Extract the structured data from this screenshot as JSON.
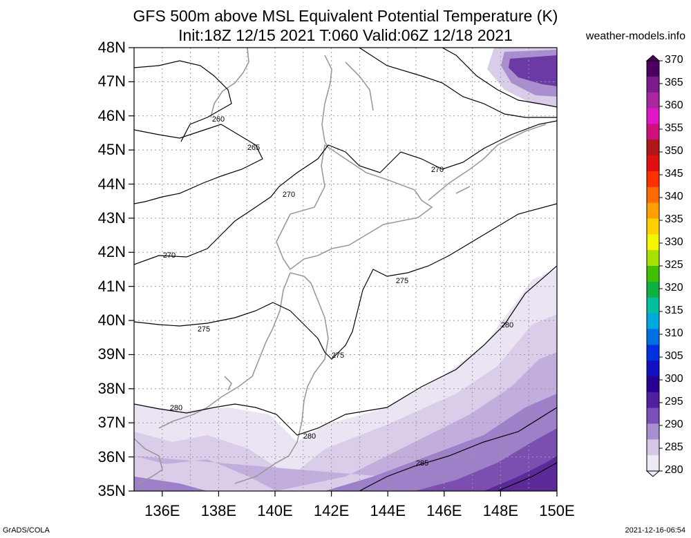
{
  "title_line1": "GFS 500m above MSL Equivalent Potential Temperature (K)",
  "title_line2": "Init:18Z 12/15 2021 T:060 Valid:06Z 12/18 2021",
  "credit": "weather-models.info",
  "footer_left": "GrADS/COLA",
  "footer_right": "2021-12-16-06:54",
  "lat_labels": [
    "48N",
    "47N",
    "46N",
    "45N",
    "44N",
    "43N",
    "42N",
    "41N",
    "40N",
    "39N",
    "38N",
    "37N",
    "36N",
    "35N"
  ],
  "lon_labels": [
    "136E",
    "138E",
    "140E",
    "142E",
    "144E",
    "146E",
    "148E",
    "150E"
  ],
  "colorbar": {
    "labels": [
      "370",
      "365",
      "360",
      "355",
      "350",
      "345",
      "340",
      "335",
      "330",
      "325",
      "320",
      "315",
      "310",
      "305",
      "300",
      "295",
      "290",
      "285",
      "280"
    ],
    "colors": [
      "#4b0060",
      "#7a1a8c",
      "#a8279e",
      "#e016c8",
      "#d0107a",
      "#b01818",
      "#e01010",
      "#ff3000",
      "#ff6a00",
      "#ffa000",
      "#ffd000",
      "#f5f500",
      "#a8e000",
      "#40c000",
      "#10b040",
      "#00c0a0",
      "#00a8e0",
      "#0070e0",
      "#0030e0",
      "#1010c0",
      "#2a0090",
      "#5020a0",
      "#7a50b8",
      "#a890d0",
      "#d4c8e6",
      "#efeaf5"
    ]
  },
  "contour_labels": [
    "260",
    "265",
    "270",
    "270",
    "270",
    "275",
    "275",
    "275",
    "280",
    "280",
    "280",
    "285"
  ],
  "chart_data": {
    "type": "heatmap",
    "title": "GFS 500m above MSL Equivalent Potential Temperature (K)",
    "subtitle": "Init:18Z 12/15 2021 T:060 Valid:06Z 12/18 2021",
    "units": "K",
    "lon_range": [
      135,
      150
    ],
    "lat_range": [
      35,
      48
    ],
    "color_scale_range": [
      280,
      370
    ],
    "color_scale_step": 5,
    "contours": [
      {
        "value": 260,
        "label_lon": 138.3,
        "label_lat": 45.9
      },
      {
        "value": 265,
        "label_lon": 139.7,
        "label_lat": 45.1
      },
      {
        "value": 270,
        "label_lon": 137.3,
        "label_lat": 41.9
      },
      {
        "value": 270,
        "label_lon": 140.5,
        "label_lat": 43.7
      },
      {
        "value": 270,
        "label_lon": 145.9,
        "label_lat": 44.4
      },
      {
        "value": 275,
        "label_lon": 137.8,
        "label_lat": 39.8
      },
      {
        "value": 275,
        "label_lon": 142.2,
        "label_lat": 38.9
      },
      {
        "value": 275,
        "label_lon": 145.4,
        "label_lat": 41.1
      },
      {
        "value": 280,
        "label_lon": 136.5,
        "label_lat": 37.4
      },
      {
        "value": 280,
        "label_lon": 142.2,
        "label_lat": 36.6
      },
      {
        "value": 280,
        "label_lon": 148.2,
        "label_lat": 39.9
      },
      {
        "value": 285,
        "label_lon": 146.2,
        "label_lat": 35.8
      }
    ],
    "grid": true
  }
}
